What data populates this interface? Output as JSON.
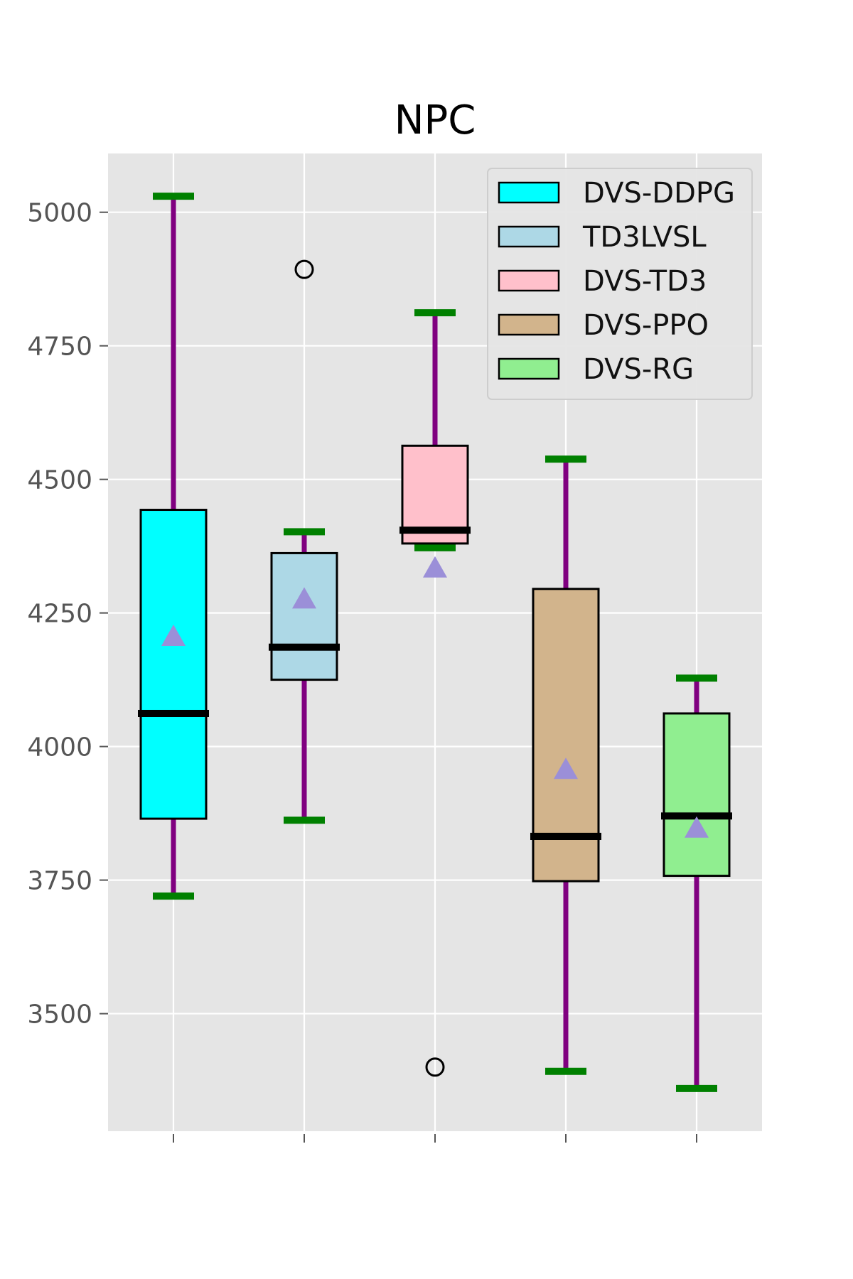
{
  "chart_data": {
    "type": "box",
    "title": "NPC",
    "xlabel": "",
    "ylabel": "",
    "ylim": [
      3280,
      5110
    ],
    "yticks": [
      3500,
      3750,
      4000,
      4250,
      4500,
      4750,
      5000
    ],
    "grid": true,
    "legend_position": "top-right",
    "colors": {
      "background": "#e5e5e5",
      "grid": "#ffffff",
      "whisker": "#800080",
      "cap": "#008000",
      "median": "#000000",
      "mean_marker": "#9b8fd8",
      "box_edge": "#000000"
    },
    "series": [
      {
        "name": "DVS-DDPG",
        "color": "#00ffff",
        "whislo": 3720,
        "q1": 3865,
        "median": 4062,
        "q3": 4443,
        "whishi": 5030,
        "mean": 4207,
        "fliers": []
      },
      {
        "name": "TD3LVSL",
        "color": "#add8e6",
        "whislo": 3862,
        "q1": 4125,
        "median": 4186,
        "q3": 4362,
        "whishi": 4402,
        "mean": 4277,
        "fliers": [
          4893
        ]
      },
      {
        "name": "DVS-TD3",
        "color": "#ffc0cb",
        "whislo": 4372,
        "q1": 4380,
        "median": 4405,
        "q3": 4563,
        "whishi": 4812,
        "mean": 4335,
        "fliers": [
          3400
        ]
      },
      {
        "name": "DVS-PPO",
        "color": "#d2b48c",
        "whislo": 3392,
        "q1": 3748,
        "median": 3832,
        "q3": 4295,
        "whishi": 4538,
        "mean": 3958,
        "fliers": []
      },
      {
        "name": "DVS-RG",
        "color": "#90ee90",
        "whislo": 3360,
        "q1": 3758,
        "median": 3870,
        "q3": 4062,
        "whishi": 4128,
        "mean": 3848,
        "fliers": []
      }
    ]
  }
}
